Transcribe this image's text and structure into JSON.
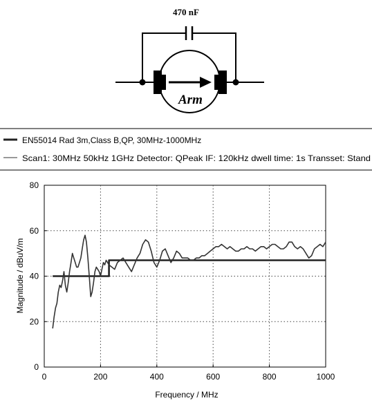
{
  "schematic": {
    "capacitor_label": "470 nF",
    "motor_label": "Arm"
  },
  "legend": {
    "entries": [
      {
        "text": "EN55014 Rad 3m,Class B,QP, 30MHz-1000MHz",
        "style": "thick"
      },
      {
        "text": "Scan1: 30MHz 50kHz 1GHz Detector: QPeak IF: 120kHz dwell time: 1s Transset: Stand",
        "style": "thin"
      }
    ]
  },
  "chart_data": {
    "type": "line",
    "title": "",
    "xlabel": "Frequency / MHz",
    "ylabel": "Magnitude / dBuV/m",
    "xlim": [
      0,
      1000
    ],
    "ylim": [
      0,
      80
    ],
    "xticks": [
      0,
      200,
      400,
      600,
      800,
      1000
    ],
    "yticks": [
      0,
      20,
      40,
      60,
      80
    ],
    "grid": true,
    "series": [
      {
        "name": "EN55014 Rad 3m,Class B,QP, 30MHz-1000MHz",
        "style": "thick",
        "color": "#222222",
        "x": [
          30,
          230,
          230,
          1000
        ],
        "y": [
          40,
          40,
          47,
          47
        ]
      },
      {
        "name": "Scan1: 30MHz 50kHz 1GHz Detector: QPeak IF: 120kHz dwell time: 1s Transset: Stand",
        "style": "thin",
        "color": "#333333",
        "x": [
          30,
          35,
          40,
          45,
          50,
          55,
          60,
          65,
          70,
          75,
          80,
          85,
          90,
          95,
          100,
          105,
          110,
          115,
          120,
          125,
          130,
          135,
          140,
          145,
          150,
          155,
          160,
          165,
          170,
          175,
          180,
          185,
          190,
          195,
          200,
          205,
          210,
          215,
          220,
          225,
          230,
          240,
          250,
          260,
          270,
          280,
          290,
          300,
          310,
          320,
          330,
          340,
          350,
          360,
          370,
          380,
          390,
          400,
          410,
          420,
          430,
          440,
          450,
          460,
          470,
          480,
          490,
          500,
          510,
          520,
          530,
          540,
          550,
          560,
          570,
          580,
          590,
          600,
          610,
          620,
          630,
          640,
          650,
          660,
          670,
          680,
          690,
          700,
          710,
          720,
          730,
          740,
          750,
          760,
          770,
          780,
          790,
          800,
          810,
          820,
          830,
          840,
          850,
          860,
          870,
          880,
          890,
          900,
          910,
          920,
          930,
          940,
          950,
          960,
          970,
          980,
          990,
          1000
        ],
        "y": [
          17,
          22,
          26,
          28,
          33,
          36,
          35,
          38,
          42,
          36,
          33,
          37,
          42,
          46,
          50,
          48,
          46,
          44,
          44,
          46,
          48,
          52,
          56,
          58,
          55,
          48,
          40,
          31,
          33,
          37,
          42,
          44,
          43,
          42,
          40,
          43,
          46,
          45,
          47,
          46,
          45,
          44,
          43,
          46,
          47,
          48,
          46,
          44,
          42,
          45,
          48,
          50,
          54,
          56,
          55,
          51,
          46,
          44,
          47,
          51,
          52,
          49,
          46,
          48,
          51,
          50,
          48,
          48,
          48,
          47,
          47,
          48,
          48,
          49,
          49,
          50,
          51,
          52,
          53,
          53,
          54,
          53,
          52,
          53,
          52,
          51,
          51,
          52,
          52,
          53,
          52,
          52,
          51,
          52,
          53,
          53,
          52,
          53,
          54,
          54,
          53,
          52,
          52,
          53,
          55,
          55,
          53,
          52,
          53,
          52,
          50,
          48,
          49,
          52,
          53,
          54,
          53,
          55
        ]
      }
    ]
  }
}
